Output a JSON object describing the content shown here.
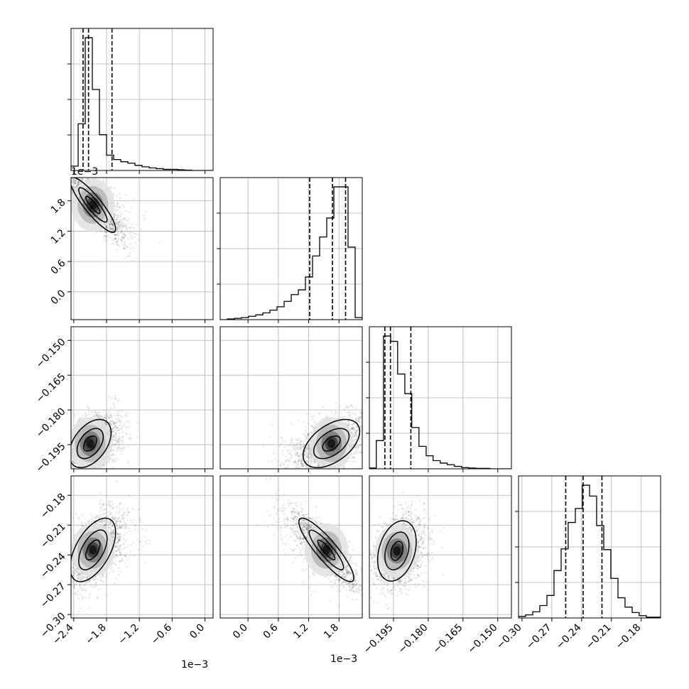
{
  "chart_data": {
    "type": "corner",
    "grid": true,
    "parameters": [
      {
        "scale_label": "1e−3",
        "range": [
          -2.45,
          0.15
        ],
        "ticks": [
          -2.4,
          -1.8,
          -1.2,
          -0.6,
          0.0
        ],
        "tick_labels": [
          "−2.4",
          "−1.8",
          "−1.2",
          "−0.6",
          "0.0"
        ]
      },
      {
        "scale_label": "1e−3",
        "range": [
          -0.55,
          2.26
        ],
        "ticks": [
          0.0,
          0.6,
          1.2,
          1.8
        ],
        "tick_labels": [
          "0.0",
          "0.6",
          "1.2",
          "1.8"
        ]
      },
      {
        "scale_label": "",
        "range": [
          -0.2054,
          -0.1441
        ],
        "ticks": [
          -0.195,
          -0.18,
          -0.165,
          -0.15
        ],
        "tick_labels": [
          "−0.195",
          "−0.180",
          "−0.165",
          "−0.150"
        ]
      },
      {
        "scale_label": "",
        "range": [
          -0.3035,
          -0.1605
        ],
        "ticks": [
          -0.3,
          -0.27,
          -0.24,
          -0.21,
          -0.18
        ],
        "tick_labels": [
          "−0.30",
          "−0.27",
          "−0.24",
          "−0.21",
          "−0.18"
        ]
      }
    ],
    "histograms": [
      {
        "bins": [
          -2.45,
          -2.32,
          -2.19,
          -2.06,
          -1.93,
          -1.8,
          -1.67,
          -1.54,
          -1.41,
          -1.28,
          -1.15,
          -1.02,
          -0.89,
          -0.76,
          -0.63,
          -0.5,
          -0.37,
          -0.24,
          -0.11,
          0.02,
          0.15
        ],
        "counts": [
          12,
          128,
          364,
          222,
          98,
          42,
          30,
          24,
          20,
          14,
          10,
          7,
          5,
          3,
          3,
          2,
          1,
          0,
          0,
          0
        ],
        "quantiles": [
          -2.23,
          -2.13,
          -1.7
        ]
      },
      {
        "bins": [
          -0.55,
          -0.4095,
          -0.269,
          -0.1285,
          0.012,
          0.1525,
          0.293,
          0.4335,
          0.574,
          0.7145,
          0.855,
          0.9955,
          1.136,
          1.2765,
          1.417,
          1.5575,
          1.698,
          1.8385,
          1.979,
          2.1195,
          2.26
        ],
        "counts": [
          0,
          1,
          2,
          3,
          5,
          7,
          10,
          14,
          19,
          27,
          37,
          44,
          63,
          94,
          122,
          150,
          196,
          196,
          107,
          3
        ],
        "quantiles": [
          1.22,
          1.67,
          1.93
        ]
      },
      {
        "bins": [
          -0.2054,
          -0.2024,
          -0.1993,
          -0.1962,
          -0.1932,
          -0.1901,
          -0.1871,
          -0.184,
          -0.1809,
          -0.1779,
          -0.1748,
          -0.1718,
          -0.1687,
          -0.1656,
          -0.1626,
          -0.1595,
          -0.1565,
          -0.1534,
          -0.1503,
          -0.1473,
          -0.1441
        ],
        "counts": [
          2,
          69,
          325,
          312,
          232,
          184,
          101,
          55,
          32,
          20,
          14,
          10,
          6,
          3,
          2,
          1,
          1,
          0,
          0,
          0
        ],
        "quantiles": [
          -0.1987,
          -0.1963,
          -0.1875
        ]
      },
      {
        "bins": [
          -0.3035,
          -0.2964,
          -0.2892,
          -0.2821,
          -0.2749,
          -0.2678,
          -0.2606,
          -0.2535,
          -0.2463,
          -0.2392,
          -0.232,
          -0.2249,
          -0.2177,
          -0.2106,
          -0.2034,
          -0.1963,
          -0.1891,
          -0.182,
          -0.1748,
          -0.1677,
          -0.1605
        ],
        "counts": [
          2,
          4,
          8,
          16,
          29,
          61,
          89,
          123,
          141,
          171,
          157,
          119,
          88,
          51,
          26,
          14,
          7,
          3,
          1,
          1
        ],
        "quantiles": [
          -0.256,
          -0.2385,
          -0.2195
        ]
      }
    ],
    "joint": [
      {
        "x": 0,
        "y": 1,
        "mean": [
          -2.05,
          1.72
        ],
        "sd": [
          0.26,
          0.34
        ],
        "corr": -0.88
      },
      {
        "x": 0,
        "y": 2,
        "mean": [
          -2.1,
          -0.1945
        ],
        "sd": [
          0.24,
          0.0065
        ],
        "corr": 0.45
      },
      {
        "x": 1,
        "y": 2,
        "mean": [
          1.65,
          -0.1945
        ],
        "sd": [
          0.35,
          0.0065
        ],
        "corr": 0.5
      },
      {
        "x": 0,
        "y": 3,
        "mean": [
          -2.05,
          -0.235
        ],
        "sd": [
          0.26,
          0.02
        ],
        "corr": 0.55
      },
      {
        "x": 1,
        "y": 3,
        "mean": [
          1.55,
          -0.235
        ],
        "sd": [
          0.34,
          0.02
        ],
        "corr": -0.88
      },
      {
        "x": 2,
        "y": 3,
        "mean": [
          -0.1935,
          -0.236
        ],
        "sd": [
          0.0052,
          0.019
        ],
        "corr": 0.3
      }
    ]
  }
}
